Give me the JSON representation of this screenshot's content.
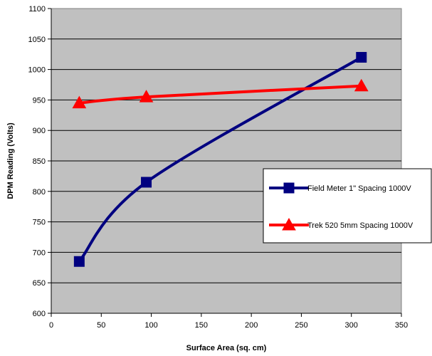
{
  "chart_data": {
    "type": "line",
    "title": "",
    "xlabel": "Surface Area (sq. cm)",
    "ylabel": "DPM Reading (Volts)",
    "xlim": [
      0,
      350
    ],
    "ylim": [
      600,
      1100
    ],
    "xticks": [
      0,
      50,
      100,
      150,
      200,
      250,
      300,
      350
    ],
    "yticks": [
      600,
      650,
      700,
      750,
      800,
      850,
      900,
      950,
      1000,
      1050,
      1100
    ],
    "grid": "horizontal",
    "plot_background": "#c0c0c0",
    "legend_position": "right",
    "smooth": true,
    "series": [
      {
        "name": "Field Meter 1\" Spacing 1000V",
        "color": "#000080",
        "marker": "square",
        "x": [
          28,
          95,
          310
        ],
        "y": [
          685,
          815,
          1020
        ]
      },
      {
        "name": "Trek 520 5mm Spacing 1000V",
        "color": "#ff0000",
        "marker": "triangle",
        "x": [
          28,
          95,
          310
        ],
        "y": [
          945,
          955,
          973
        ]
      }
    ]
  }
}
